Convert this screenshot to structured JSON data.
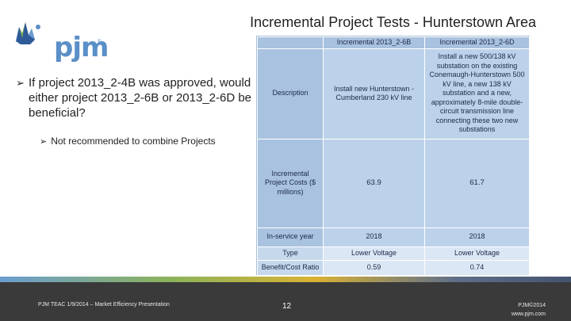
{
  "header": {
    "logo_text": "pjm",
    "logo_tm": "®",
    "title": "Incremental Project Tests - Hunterstown Area"
  },
  "bullets": {
    "main": "If project 2013_2-4B was approved, would either project 2013_2-6B or 2013_2-6D be beneficial?",
    "sub": "Not recommended to combine Projects"
  },
  "table": {
    "headers": [
      "",
      "Incremental 2013_2-6B",
      "Incremental 2013_2-6D"
    ],
    "rows": [
      {
        "label": "Description",
        "b": "Install new Hunterstown - Cumberland 230 kV line",
        "d": "Install a new 500/138 kV substation on the existing Conemaugh-Hunterstown 500 kV line, a new 138 kV substation and a new, approximately 8-mile double-circuit transmission line connecting these two new substations"
      },
      {
        "label": "Incremental Project Costs ($ millions)",
        "b": "63.9",
        "d": "61.7"
      },
      {
        "label": "In-service year",
        "b": "2018",
        "d": "2018"
      },
      {
        "label": "Type",
        "b": "Lower Voltage",
        "d": "Lower Voltage"
      },
      {
        "label": "Benefit/Cost Ratio",
        "b": "0.59",
        "d": "0.74"
      }
    ]
  },
  "footer": {
    "left": "PJM TEAC 1/9/2014 – Market Efficiency Presentation",
    "page": "12",
    "right_line1": "PJM©2014",
    "right_line2": "www.pjm.com"
  },
  "colors": {
    "logo_blue": "#5b8fc7",
    "table_header": "#a9c2df",
    "table_cell": "#bcd2ea",
    "footer_bg": "#3a3a3a"
  }
}
